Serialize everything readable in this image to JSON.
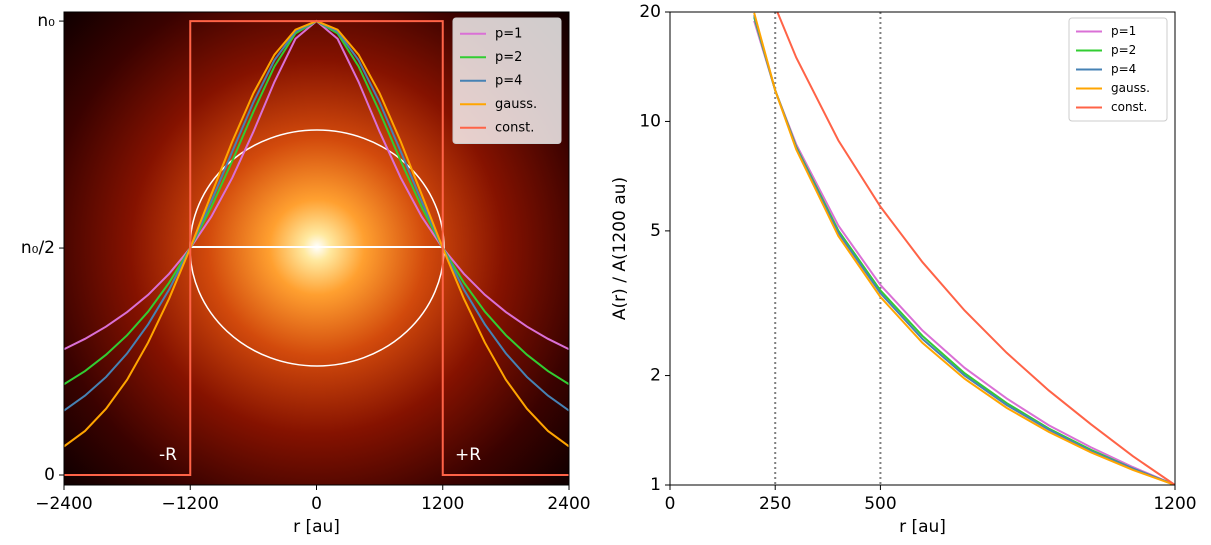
{
  "chart_data": [
    {
      "type": "line",
      "xlabel": "r [au]",
      "xlim": [
        -2400,
        2400
      ],
      "ylim": [
        -0.022,
        1.02
      ],
      "xticks": [
        {
          "value": -2400,
          "label": "−2400"
        },
        {
          "value": -1200,
          "label": "−1200"
        },
        0,
        1200,
        2400
      ],
      "yticks": [
        {
          "value": 0,
          "label": "0"
        },
        {
          "value": 0.5,
          "label": "n₀/2"
        },
        {
          "value": 1,
          "label": "n₀"
        }
      ],
      "annotations": [
        "-R",
        "+R"
      ],
      "legend": "upper right",
      "x": [
        -2400,
        -2200,
        -2000,
        -1800,
        -1600,
        -1400,
        -1200,
        -1000,
        -800,
        -600,
        -400,
        -200,
        0,
        200,
        400,
        600,
        800,
        1000,
        1200,
        1400,
        1600,
        1800,
        2000,
        2200,
        2400
      ],
      "series": [
        {
          "name": "p=1",
          "color": "#da70d6",
          "values": [
            0.277,
            0.3,
            0.327,
            0.359,
            0.397,
            0.4435,
            0.5,
            0.569,
            0.655,
            0.756,
            0.866,
            0.961,
            1,
            0.961,
            0.866,
            0.756,
            0.655,
            0.569,
            0.5,
            0.4435,
            0.397,
            0.359,
            0.327,
            0.3,
            0.277
          ]
        },
        {
          "name": "p=2",
          "color": "#32cd32",
          "values": [
            0.2,
            0.229,
            0.265,
            0.308,
            0.36,
            0.424,
            0.5,
            0.59,
            0.692,
            0.8,
            0.9,
            0.973,
            1,
            0.973,
            0.9,
            0.8,
            0.692,
            0.59,
            0.5,
            0.424,
            0.36,
            0.308,
            0.265,
            0.229,
            0.2
          ]
        },
        {
          "name": "p=4",
          "color": "#4682b4",
          "values": [
            0.142,
            0.175,
            0.216,
            0.268,
            0.332,
            0.409,
            0.5,
            0.603,
            0.713,
            0.821,
            0.914,
            0.977,
            1,
            0.977,
            0.914,
            0.821,
            0.713,
            0.603,
            0.5,
            0.409,
            0.332,
            0.268,
            0.216,
            0.175,
            0.142
          ]
        },
        {
          "name": "gauss.",
          "color": "#ffa500",
          "values": [
            0.063,
            0.097,
            0.146,
            0.21,
            0.292,
            0.389,
            0.5,
            0.618,
            0.735,
            0.841,
            0.926,
            0.981,
            1,
            0.981,
            0.926,
            0.841,
            0.735,
            0.618,
            0.5,
            0.389,
            0.292,
            0.21,
            0.146,
            0.097,
            0.063
          ]
        },
        {
          "name": "const.",
          "color": "#ff6347",
          "x": [
            -2400,
            -1200,
            -1200,
            1200,
            1200,
            2400
          ],
          "values": [
            0,
            0,
            1,
            1,
            0,
            0
          ]
        }
      ]
    },
    {
      "type": "line",
      "xlabel": "r [au]",
      "ylabel": "A(r) / A(1200 au)",
      "yscale": "log",
      "xlim": [
        0,
        1200
      ],
      "ylim": [
        1,
        20
      ],
      "xticks": [
        0,
        250,
        500,
        1200
      ],
      "yticks": [
        1,
        2,
        5,
        10,
        20
      ],
      "vlines": [
        250,
        500
      ],
      "legend": "upper right",
      "x": [
        200,
        250,
        300,
        400,
        500,
        600,
        700,
        800,
        900,
        1000,
        1100,
        1200
      ],
      "series": [
        {
          "name": "p=1",
          "color": "#da70d6",
          "values": [
            18.91,
            12.18,
            8.64,
            5.17,
            3.55,
            2.66,
            2.1,
            1.73,
            1.46,
            1.27,
            1.12,
            1
          ]
        },
        {
          "name": "p=2",
          "color": "#32cd32",
          "values": [
            19.35,
            12.18,
            8.51,
            5.01,
            3.43,
            2.57,
            2.03,
            1.68,
            1.43,
            1.25,
            1.11,
            1
          ]
        },
        {
          "name": "p=4",
          "color": "#4682b4",
          "values": [
            19.6,
            12.18,
            8.45,
            4.94,
            3.37,
            2.52,
            2.0,
            1.66,
            1.42,
            1.24,
            1.11,
            1
          ]
        },
        {
          "name": "gauss.",
          "color": "#ffa500",
          "values": [
            19.89,
            12.18,
            8.37,
            4.84,
            3.29,
            2.46,
            1.96,
            1.63,
            1.4,
            1.23,
            1.1,
            1
          ]
        },
        {
          "name": "const.",
          "color": "#ff6347",
          "x": [
            250,
            300,
            400,
            500,
            600,
            700,
            800,
            900,
            1000,
            1100,
            1200
          ],
          "values": [
            20.68,
            14.98,
            8.87,
            5.83,
            4.1,
            3.02,
            2.31,
            1.82,
            1.47,
            1.2,
            1
          ]
        }
      ]
    }
  ]
}
